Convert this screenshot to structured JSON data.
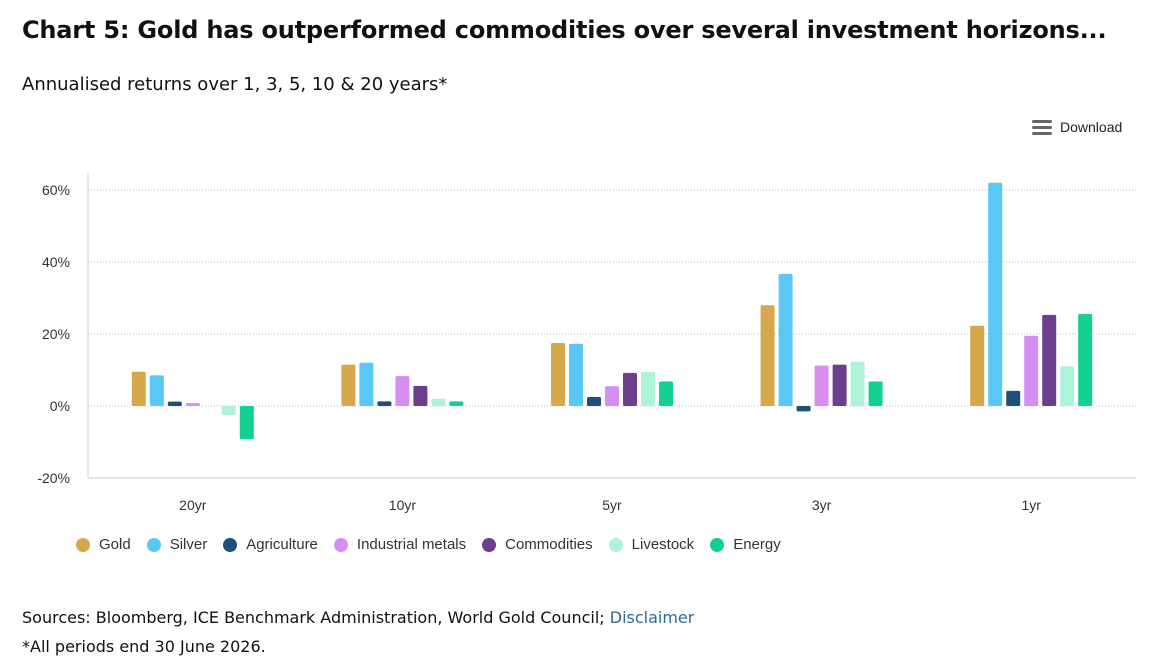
{
  "title": "Chart 5: Gold has outperformed commodities over several investment horizons...",
  "subtitle": "Annualised returns over 1, 3, 5, 10 & 20 years*",
  "download_label": "Download",
  "download_icon": "menu-icon",
  "sources_text": "Sources: Bloomberg, ICE Benchmark Administration, World Gold Council; ",
  "disclaimer_label": "Disclaimer",
  "footnote": "*All periods end 30 June 2026.",
  "chart_data": {
    "type": "bar",
    "title": "",
    "xlabel": "",
    "ylabel": "",
    "categories": [
      "20yr",
      "10yr",
      "5yr",
      "3yr",
      "1yr"
    ],
    "ylim": [
      -20,
      65
    ],
    "yticks": [
      -20,
      0,
      20,
      40,
      60
    ],
    "ytick_labels": [
      "-20%",
      "0%",
      "20%",
      "40%",
      "60%"
    ],
    "grid": true,
    "legend_position": "bottom-left",
    "series": [
      {
        "name": "Gold",
        "color": "#d4a84b",
        "values": [
          9.5,
          11.5,
          17.5,
          28.0,
          22.3
        ]
      },
      {
        "name": "Silver",
        "color": "#5ac8f5",
        "values": [
          8.5,
          12.0,
          17.3,
          36.7,
          62.0
        ]
      },
      {
        "name": "Agriculture",
        "color": "#1f4e7a",
        "values": [
          1.2,
          1.3,
          2.5,
          -1.5,
          4.2
        ]
      },
      {
        "name": "Industrial metals",
        "color": "#d68ef0",
        "values": [
          0.8,
          8.3,
          5.5,
          11.2,
          19.5
        ]
      },
      {
        "name": "Commodities",
        "color": "#6c3f8c",
        "values": [
          0.0,
          5.6,
          9.2,
          11.5,
          25.3
        ]
      },
      {
        "name": "Livestock",
        "color": "#aef3d8",
        "values": [
          -2.5,
          2.0,
          9.5,
          12.3,
          11.0
        ]
      },
      {
        "name": "Energy",
        "color": "#12d18e",
        "values": [
          -9.2,
          1.3,
          6.8,
          6.8,
          25.6
        ]
      }
    ]
  }
}
